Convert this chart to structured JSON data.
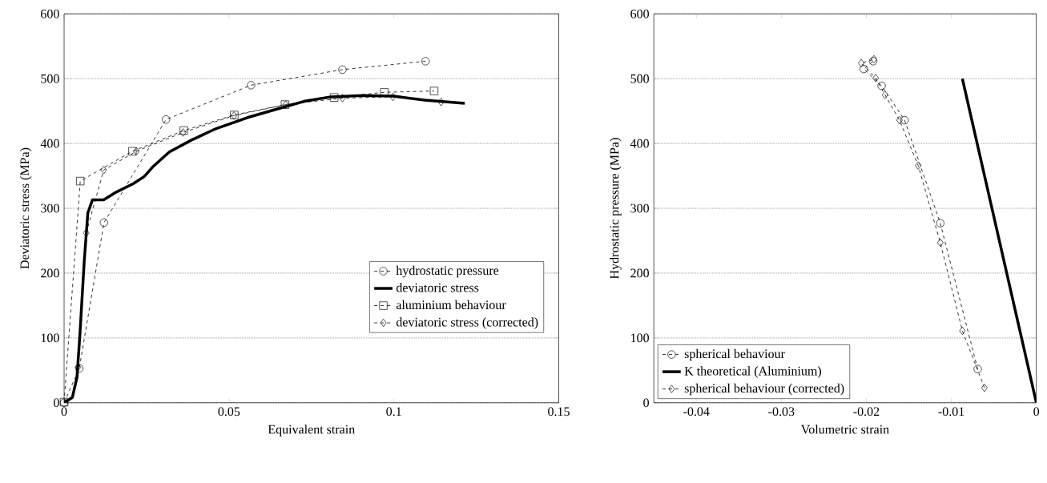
{
  "chart_data": [
    {
      "type": "line",
      "xlabel": "Equivalent strain",
      "ylabel": "Deviatoric stress (MPa)",
      "xlim": [
        0,
        0.15
      ],
      "ylim": [
        0,
        600
      ],
      "xticks": [
        0,
        0.05,
        0.1,
        0.15
      ],
      "yticks": [
        0,
        100,
        200,
        300,
        400,
        500,
        600
      ],
      "grid": "y",
      "legend": "bottom right",
      "series": [
        {
          "name": "hydrostatic pressure",
          "color": "#000000",
          "marker": "circle",
          "line_style": "dashed",
          "x": [
            0,
            0.0046,
            0.0121,
            0.0309,
            0.0567,
            0.0844,
            0.1096
          ],
          "values": [
            0,
            53,
            278,
            437,
            490,
            514,
            527
          ]
        },
        {
          "name": "deviatoric stress",
          "color": "#000000",
          "marker": "none",
          "line_style": "solid",
          "x": [
            0,
            0.0025,
            0.0039,
            0.0048,
            0.0061,
            0.0072,
            0.0086,
            0.012,
            0.0158,
            0.021,
            0.0243,
            0.0271,
            0.0319,
            0.0385,
            0.0461,
            0.0556,
            0.0651,
            0.0727,
            0.0809,
            0.0904,
            0.0999,
            0.1094,
            0.1215
          ],
          "values": [
            0,
            8,
            39,
            106,
            218,
            293,
            313,
            313,
            325,
            338,
            349,
            365,
            387,
            405,
            423,
            440,
            454,
            465,
            472,
            474,
            473,
            467,
            462
          ]
        },
        {
          "name": "aluminium behaviour",
          "color": "#000000",
          "marker": "square",
          "line_style": "dashed",
          "x": [
            0,
            0.0049,
            0.0207,
            0.0363,
            0.0516,
            0.067,
            0.0819,
            0.0971,
            0.1122
          ],
          "values": [
            1,
            342,
            388,
            420,
            444,
            460,
            471,
            479,
            481
          ]
        },
        {
          "name": "deviatoric stress (corrected)",
          "color": "#000000",
          "marker": "diamond",
          "line_style": "dashed",
          "x": [
            0.0042,
            0.0067,
            0.012,
            0.0219,
            0.0361,
            0.0515,
            0.0672,
            0.0844,
            0.0997,
            0.1143
          ],
          "values": [
            55,
            262,
            359,
            388,
            417,
            443,
            460,
            470,
            472,
            464
          ]
        }
      ]
    },
    {
      "type": "line",
      "xlabel": "Volumetric strain",
      "ylabel": "Hydrostatic pressure (MPa)",
      "xlim": [
        -0.045,
        0
      ],
      "ylim": [
        0,
        600
      ],
      "xticks": [
        -0.04,
        -0.03,
        -0.02,
        -0.01,
        0
      ],
      "yticks": [
        0,
        100,
        200,
        300,
        400,
        500,
        600
      ],
      "grid": "y",
      "legend": "bottom left",
      "series": [
        {
          "name": "spherical behaviour",
          "color": "#000000",
          "marker": "circle",
          "line_style": "dashed",
          "x": [
            -0.0069,
            -0.0113,
            -0.0155,
            -0.0182,
            -0.0203,
            -0.0192
          ],
          "values": [
            52,
            277,
            436,
            489,
            515,
            527
          ]
        },
        {
          "name": "K theoretical (Aluminium)",
          "color": "#000000",
          "marker": "none",
          "line_style": "solid",
          "x": [
            0,
            -0.0087
          ],
          "values": [
            0,
            500
          ]
        },
        {
          "name": "spherical behaviour (corrected)",
          "color": "#000000",
          "marker": "diamond",
          "line_style": "dashed",
          "x": [
            -0.0061,
            -0.0087,
            -0.0113,
            -0.0139,
            -0.0161,
            -0.0178,
            -0.0189,
            -0.0206,
            -0.0191
          ],
          "values": [
            23,
            111,
            247,
            366,
            436,
            475,
            501,
            524,
            530
          ]
        }
      ]
    }
  ]
}
